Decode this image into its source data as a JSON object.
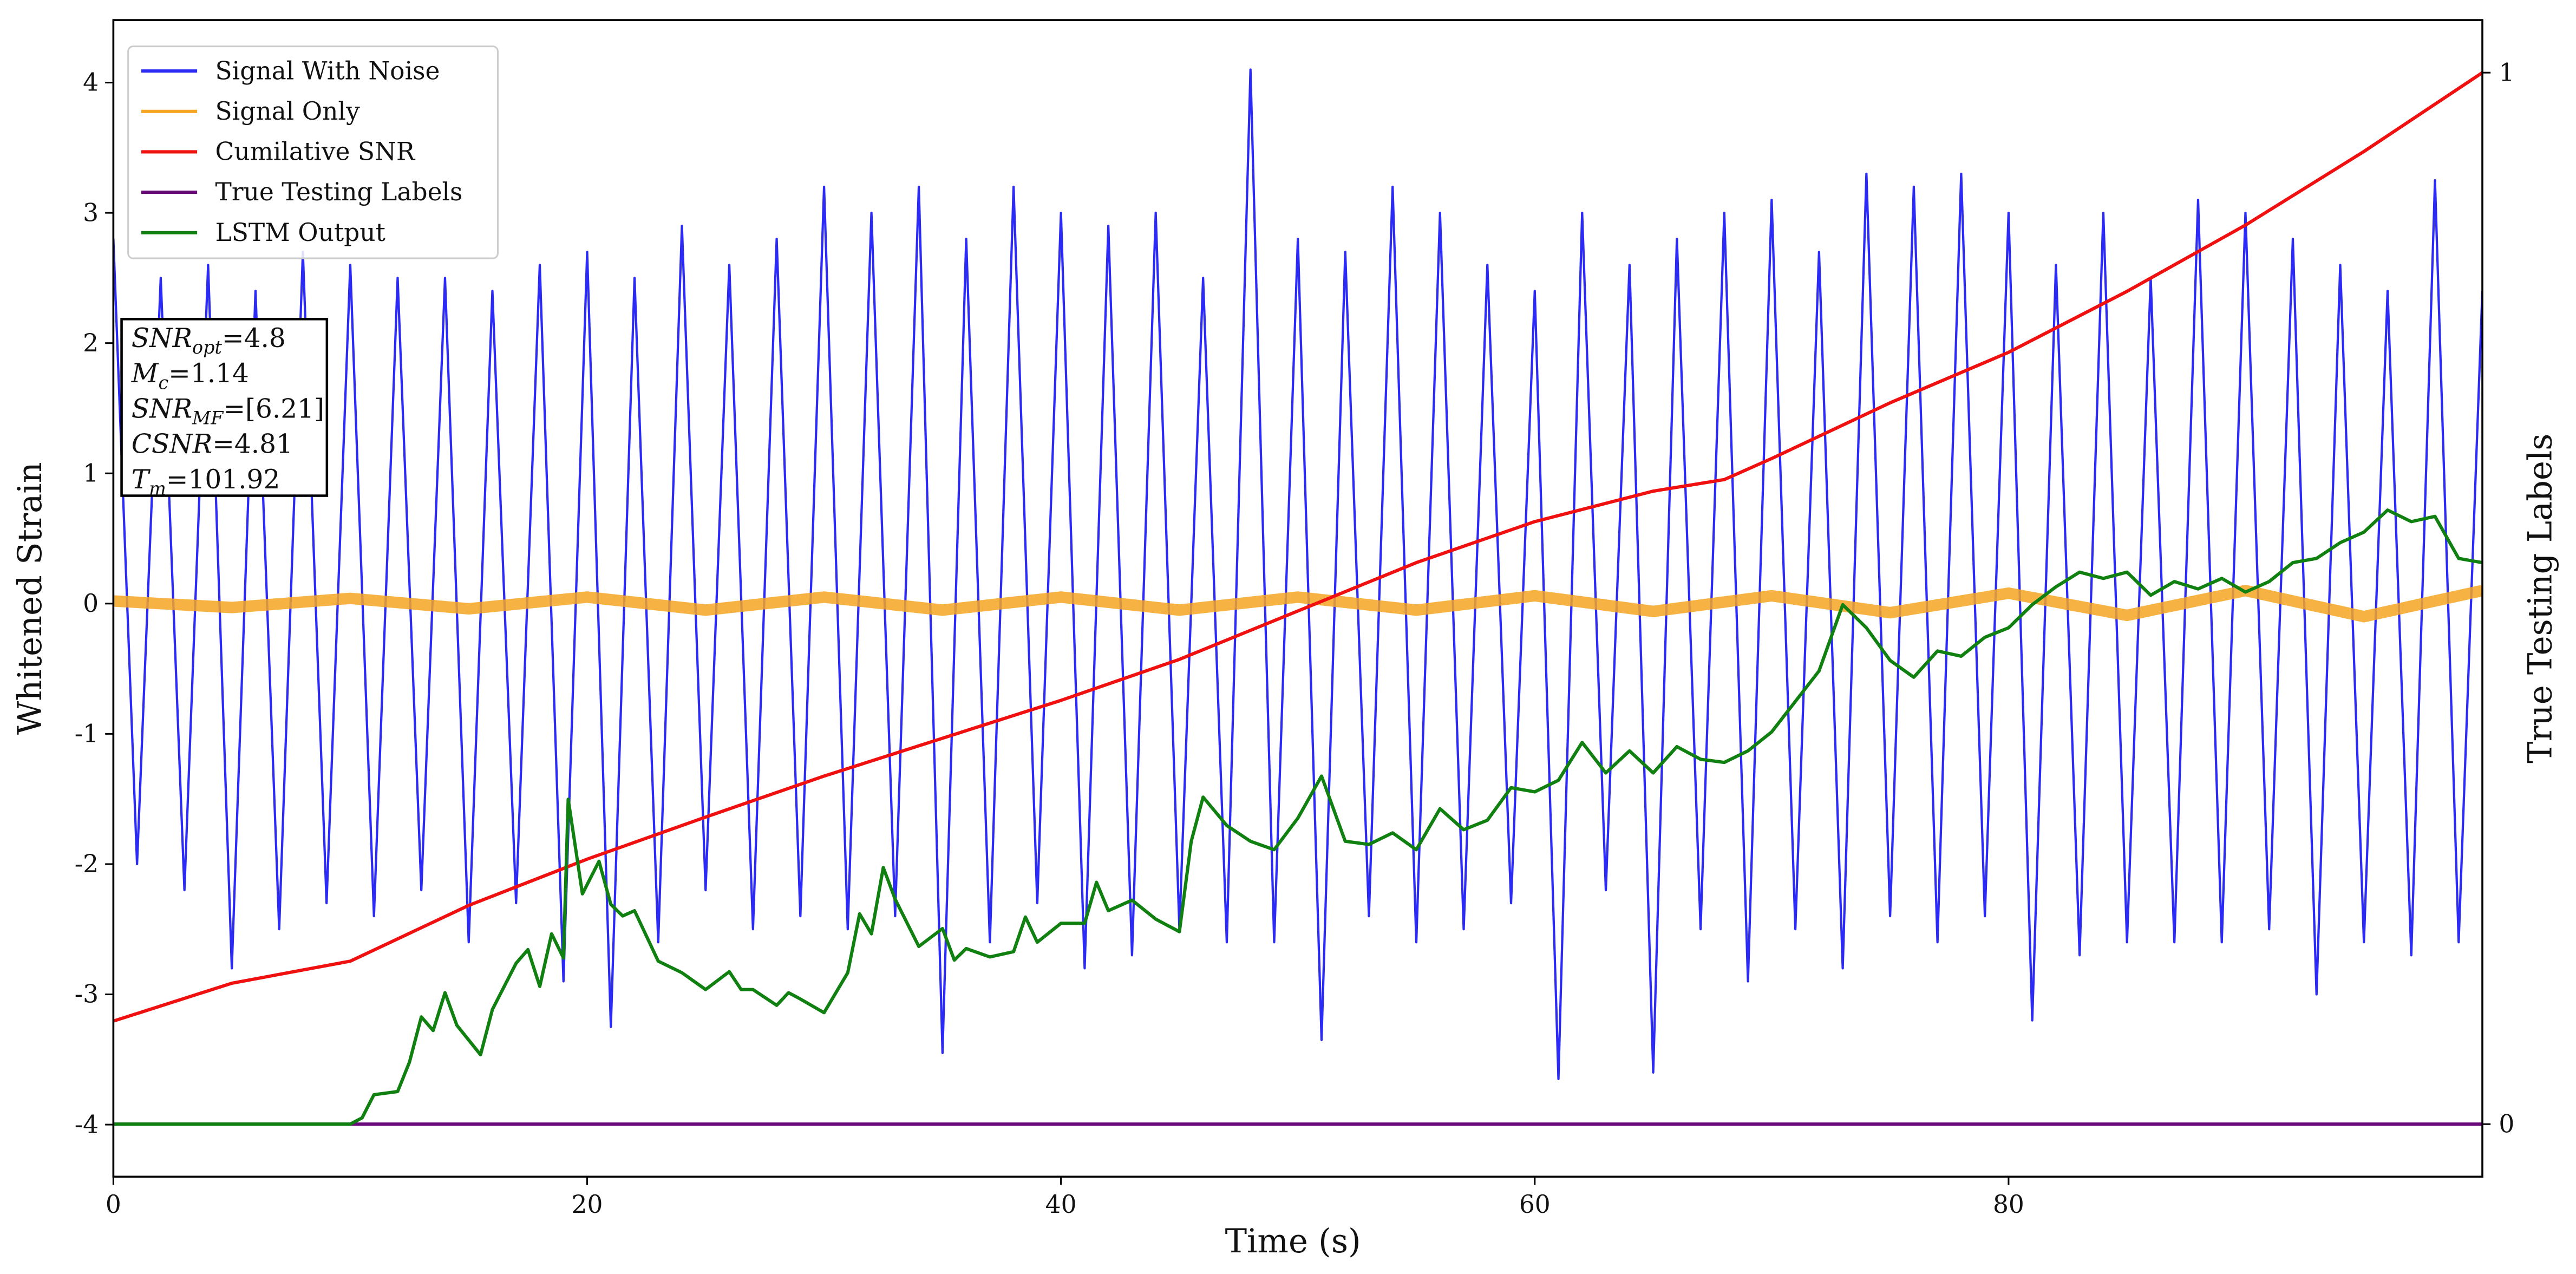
{
  "chart_data": {
    "type": "line",
    "xlabel": "Time (s)",
    "ylabel": "Whitened Strain",
    "y2label": "True Testing Labels",
    "xlim": [
      0,
      100
    ],
    "ylim": [
      -4.4,
      4.48
    ],
    "y2lim": [
      -0.05,
      1.05
    ],
    "xticks": [
      0,
      20,
      40,
      60,
      80
    ],
    "yticks": [
      -4,
      -3,
      -2,
      -1,
      0,
      1,
      2,
      3,
      4
    ],
    "y2ticks": [
      0,
      1
    ],
    "legend": "upper left",
    "series": [
      {
        "name": "Signal With Noise",
        "color": "#2b2bf5",
        "axis": "y",
        "x": [
          0,
          1,
          2,
          3,
          4,
          5,
          6,
          7,
          8,
          9,
          10,
          11,
          12,
          13,
          14,
          15,
          16,
          17,
          18,
          19,
          20,
          21,
          22,
          23,
          24,
          25,
          26,
          27,
          28,
          29,
          30,
          31,
          32,
          33,
          34,
          35,
          36,
          37,
          38,
          39,
          40,
          41,
          42,
          43,
          44,
          45,
          46,
          47,
          48,
          49,
          50,
          51,
          52,
          53,
          54,
          55,
          56,
          57,
          58,
          59,
          60,
          61,
          62,
          63,
          64,
          65,
          66,
          67,
          68,
          69,
          70,
          71,
          72,
          73,
          74,
          75,
          76,
          77,
          78,
          79,
          80,
          81,
          82,
          83,
          84,
          85,
          86,
          87,
          88,
          89,
          90,
          91,
          92,
          93,
          94,
          95,
          96,
          97,
          98,
          99,
          100
        ],
        "values": [
          2.8,
          -2.0,
          2.5,
          -2.2,
          2.6,
          -2.8,
          2.4,
          -2.5,
          2.7,
          -2.3,
          2.6,
          -2.4,
          2.5,
          -2.2,
          2.5,
          -2.6,
          2.4,
          -2.3,
          2.6,
          -2.9,
          2.7,
          -3.25,
          2.5,
          -2.6,
          2.9,
          -2.2,
          2.6,
          -2.5,
          2.8,
          -2.4,
          3.2,
          -2.5,
          3.0,
          -2.4,
          3.2,
          -3.45,
          2.8,
          -2.6,
          3.2,
          -2.3,
          3.0,
          -2.8,
          2.9,
          -2.7,
          3.0,
          -2.5,
          2.5,
          -2.6,
          4.1,
          -2.6,
          2.8,
          -3.35,
          2.7,
          -2.4,
          3.2,
          -2.6,
          3.0,
          -2.5,
          2.6,
          -2.3,
          2.4,
          -3.65,
          3.0,
          -2.2,
          2.6,
          -3.6,
          2.8,
          -2.5,
          3.0,
          -2.9,
          3.1,
          -2.5,
          2.7,
          -2.8,
          3.3,
          -2.4,
          3.2,
          -2.6,
          3.3,
          -2.4,
          3.0,
          -3.2,
          2.6,
          -2.7,
          3.0,
          -2.6,
          2.5,
          -2.6,
          3.1,
          -2.6,
          3.0,
          -2.5,
          2.8,
          -3.0,
          2.6,
          -2.6,
          2.4,
          -2.7,
          3.25,
          -2.6,
          2.4
        ]
      },
      {
        "name": "Signal Only",
        "color": "#f5a623",
        "axis": "y",
        "x": [
          0,
          5,
          10,
          15,
          20,
          25,
          30,
          35,
          40,
          45,
          50,
          55,
          60,
          65,
          70,
          75,
          80,
          85,
          90,
          95,
          100
        ],
        "values": [
          0.02,
          -0.03,
          0.04,
          -0.04,
          0.05,
          -0.05,
          0.05,
          -0.05,
          0.05,
          -0.05,
          0.05,
          -0.05,
          0.06,
          -0.06,
          0.06,
          -0.07,
          0.08,
          -0.09,
          0.1,
          -0.1,
          0.1
        ]
      },
      {
        "name": "Cumilative SNR",
        "color": "#f01010",
        "axis": "y2",
        "x": [
          0,
          5,
          10,
          15,
          20,
          25,
          30,
          35,
          40,
          45,
          50,
          55,
          60,
          65,
          68,
          70,
          75,
          80,
          85,
          90,
          95,
          100
        ],
        "values": [
          0.098,
          0.134,
          0.155,
          0.208,
          0.252,
          0.292,
          0.331,
          0.367,
          0.403,
          0.442,
          0.488,
          0.534,
          0.573,
          0.602,
          0.613,
          0.633,
          0.686,
          0.734,
          0.792,
          0.855,
          0.925,
          1.0
        ]
      },
      {
        "name": "True Testing Labels",
        "color": "#6a0a7a",
        "axis": "y2",
        "x": [
          0,
          100
        ],
        "values": [
          0,
          0
        ]
      },
      {
        "name": "LSTM Output",
        "color": "#108010",
        "axis": "y2",
        "x": [
          0,
          10,
          10.5,
          11,
          12,
          12.5,
          13,
          13.5,
          14,
          14.5,
          15.5,
          16,
          17,
          17.5,
          18,
          18.5,
          19,
          19.2,
          19.8,
          20.5,
          21,
          21.5,
          22,
          23,
          24,
          25,
          26,
          26.5,
          27,
          28,
          28.5,
          29,
          30,
          31,
          31.5,
          32,
          32.5,
          33,
          34,
          35,
          35.5,
          36,
          37,
          38,
          38.5,
          39,
          40,
          41,
          41.5,
          42,
          43,
          44,
          45,
          45.5,
          46,
          47,
          48,
          49,
          50,
          51,
          52,
          53,
          54,
          55,
          56,
          57,
          58,
          59,
          60,
          61,
          62,
          63,
          64,
          65,
          66,
          67,
          68,
          69,
          70,
          71,
          72,
          73,
          74,
          75,
          76,
          77,
          78,
          79,
          80,
          81,
          82,
          83,
          84,
          85,
          86,
          87,
          88,
          89,
          90,
          91,
          92,
          93,
          94,
          95,
          96,
          97,
          98,
          99,
          100
        ],
        "values": [
          0,
          0,
          0.006,
          0.028,
          0.031,
          0.059,
          0.102,
          0.089,
          0.125,
          0.094,
          0.066,
          0.109,
          0.153,
          0.166,
          0.131,
          0.181,
          0.158,
          0.309,
          0.219,
          0.25,
          0.209,
          0.198,
          0.203,
          0.155,
          0.144,
          0.128,
          0.145,
          0.128,
          0.128,
          0.113,
          0.125,
          0.119,
          0.106,
          0.144,
          0.2,
          0.181,
          0.244,
          0.214,
          0.169,
          0.186,
          0.156,
          0.167,
          0.159,
          0.164,
          0.197,
          0.173,
          0.191,
          0.191,
          0.23,
          0.203,
          0.213,
          0.195,
          0.183,
          0.269,
          0.311,
          0.284,
          0.269,
          0.261,
          0.291,
          0.331,
          0.269,
          0.266,
          0.277,
          0.261,
          0.3,
          0.28,
          0.289,
          0.32,
          0.316,
          0.327,
          0.363,
          0.334,
          0.355,
          0.334,
          0.359,
          0.347,
          0.344,
          0.355,
          0.373,
          0.402,
          0.431,
          0.494,
          0.472,
          0.441,
          0.425,
          0.45,
          0.445,
          0.463,
          0.472,
          0.494,
          0.511,
          0.525,
          0.519,
          0.525,
          0.503,
          0.516,
          0.509,
          0.519,
          0.506,
          0.516,
          0.534,
          0.538,
          0.553,
          0.563,
          0.584,
          0.573,
          0.578,
          0.538,
          0.534
        ]
      }
    ],
    "annotations": [
      {
        "symbol": "SNR",
        "subscript": "opt",
        "text": "=4.8"
      },
      {
        "symbol": "M",
        "subscript": "c",
        "text": "=1.14"
      },
      {
        "symbol": "SNR",
        "subscript": "MF",
        "text": "=[6.21]"
      },
      {
        "symbol": "CSNR",
        "text": "=4.81"
      },
      {
        "symbol": "T",
        "subscript": "m",
        "text": "=101.92"
      }
    ]
  }
}
